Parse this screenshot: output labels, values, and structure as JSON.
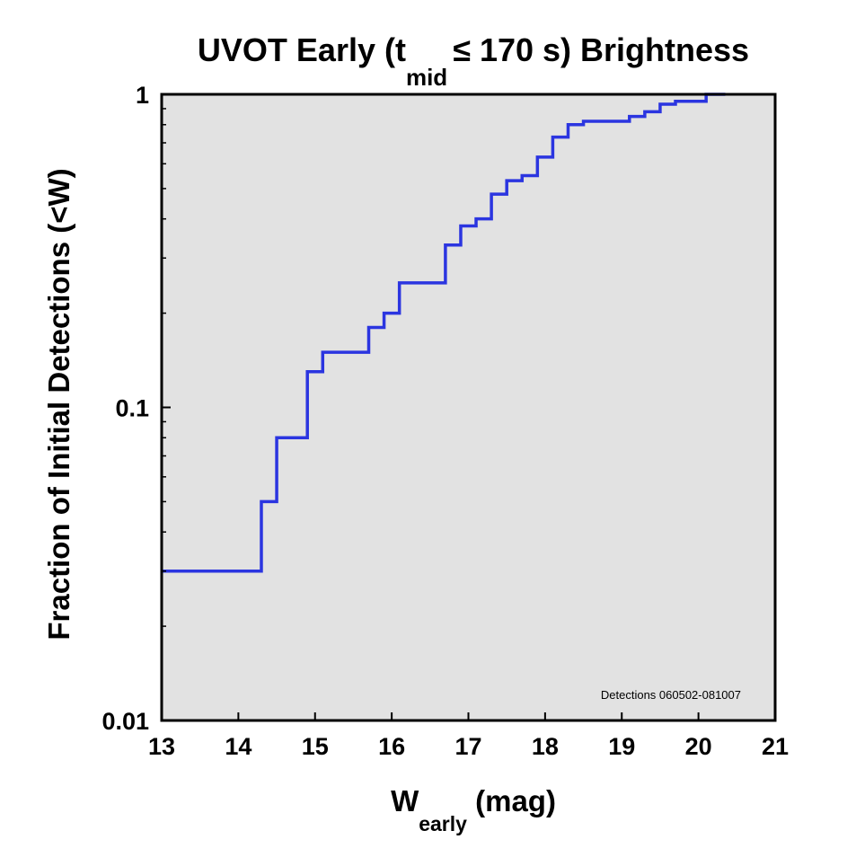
{
  "colors": {
    "line": "#2b35e0",
    "plot_bg": "#e2e2e2",
    "frame": "#000000"
  },
  "chart_data": {
    "type": "line",
    "step": true,
    "title": {
      "prefix": "UVOT Early (t",
      "sub": "mid",
      "suffix": "≤ 170 s) Brightness"
    },
    "xlabel": {
      "main": "W",
      "sub": "early",
      "unit": " (mag)"
    },
    "ylabel": "Fraction of Initial Detections (<W)",
    "xlim": [
      13,
      21
    ],
    "ylim": [
      0.01,
      1
    ],
    "yscale": "log",
    "xticks": [
      13,
      14,
      15,
      16,
      17,
      18,
      19,
      20,
      21
    ],
    "xtick_labels": [
      "13",
      "14",
      "15",
      "16",
      "17",
      "18",
      "19",
      "20",
      "21"
    ],
    "yticks": [
      0.01,
      0.1,
      1
    ],
    "ytick_labels": [
      "0.01",
      "0.1",
      "1"
    ],
    "annotation": "Detections 060502-081007",
    "series": [
      {
        "name": "Detections",
        "x": [
          13.0,
          14.3,
          14.5,
          14.9,
          15.1,
          15.7,
          15.9,
          16.1,
          16.7,
          16.9,
          17.1,
          17.3,
          17.5,
          17.7,
          17.9,
          18.1,
          18.3,
          18.5,
          19.1,
          19.3,
          19.5,
          19.7,
          20.1,
          20.35
        ],
        "y": [
          0.03,
          0.05,
          0.08,
          0.13,
          0.15,
          0.18,
          0.2,
          0.25,
          0.33,
          0.38,
          0.4,
          0.48,
          0.53,
          0.55,
          0.63,
          0.73,
          0.8,
          0.82,
          0.85,
          0.88,
          0.93,
          0.95,
          1.0,
          1.0
        ]
      }
    ]
  }
}
